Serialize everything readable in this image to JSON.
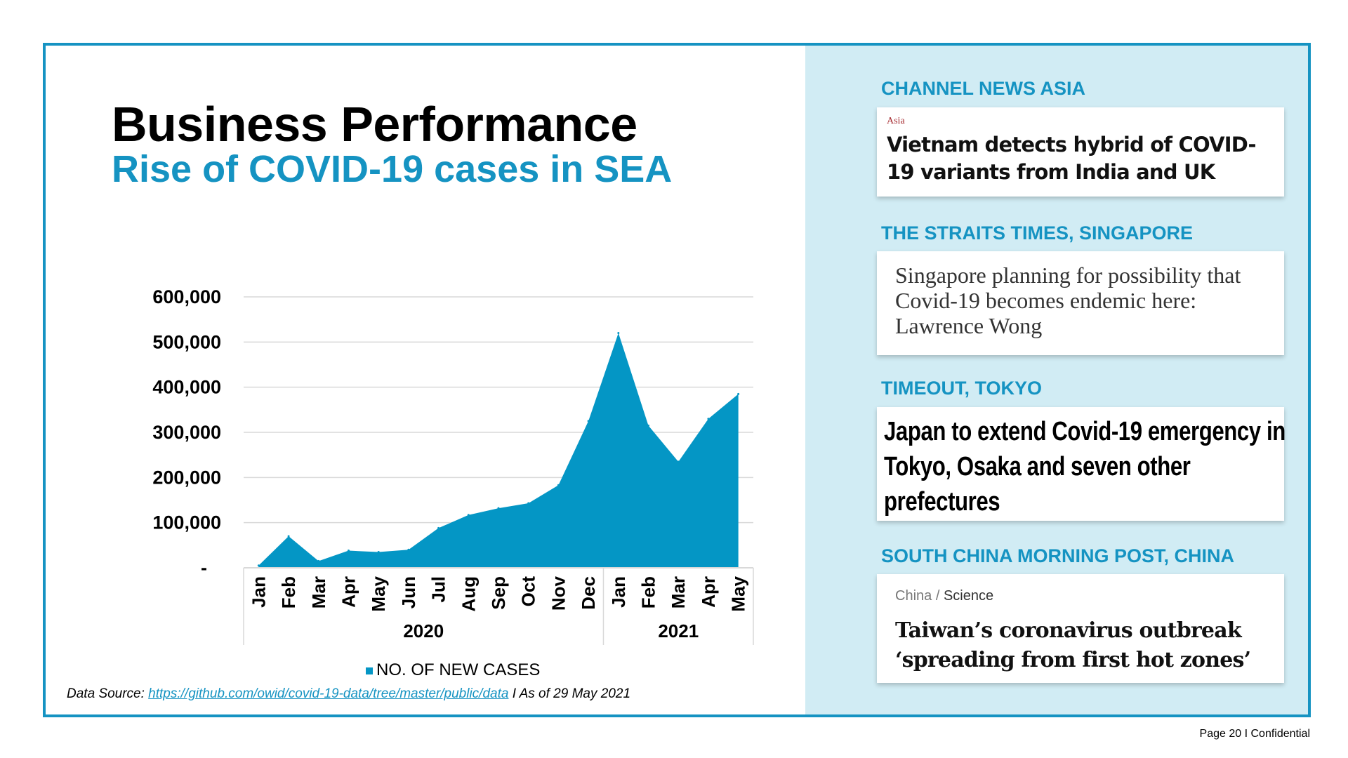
{
  "slide": {
    "title": "Business Performance",
    "subtitle": "Rise of COVID-19 cases in SEA",
    "source_prefix": "Data Source: ",
    "source_link": "https://github.com/owid/covid-19-data/tree/master/public/data",
    "source_suffix": " I As of 29 May 2021",
    "footer": "Page 20 I Confidential"
  },
  "colors": {
    "accent": "#1593c2",
    "area": "#0496c5",
    "panel": "#d1ecf4",
    "grid": "#d9d9d9"
  },
  "chart_data": {
    "type": "area",
    "categories": [
      "Jan",
      "Feb",
      "Mar",
      "Apr",
      "May",
      "Jun",
      "Jul",
      "Aug",
      "Sep",
      "Oct",
      "Nov",
      "Dec",
      "Jan",
      "Feb",
      "Mar",
      "Apr",
      "May"
    ],
    "category_groups": [
      {
        "label": "2020",
        "count": 12
      },
      {
        "label": "2021",
        "count": 5
      }
    ],
    "series": [
      {
        "name": "NO. OF NEW CASES",
        "values": [
          5000,
          70000,
          15000,
          38000,
          35000,
          40000,
          88000,
          117000,
          132000,
          143000,
          183000,
          325000,
          520000,
          315000,
          235000,
          330000,
          385000
        ]
      }
    ],
    "y_ticks": [
      {
        "value": 0,
        "label": "-"
      },
      {
        "value": 100000,
        "label": "100,000"
      },
      {
        "value": 200000,
        "label": "200,000"
      },
      {
        "value": 300000,
        "label": "300,000"
      },
      {
        "value": 400000,
        "label": "400,000"
      },
      {
        "value": 500000,
        "label": "500,000"
      },
      {
        "value": 600000,
        "label": "600,000"
      }
    ],
    "ylim": [
      0,
      600000
    ],
    "grid": true,
    "legend_position": "bottom"
  },
  "news": [
    {
      "publisher": "CHANNEL NEWS ASIA",
      "section": "Asia",
      "headline": "Vietnam detects hybrid of COVID-19 variants from India and UK"
    },
    {
      "publisher": "THE STRAITS TIMES, SINGAPORE",
      "headline": "Singapore planning for possibility that Covid-19 becomes endemic here: Lawrence Wong"
    },
    {
      "publisher": "TIMEOUT, TOKYO",
      "headline": "Japan to extend Covid-19 emergency in Tokyo, Osaka and seven other prefectures"
    },
    {
      "publisher": "SOUTH CHINA MORNING POST, CHINA",
      "crumb_parent": "China",
      "crumb_sep": " / ",
      "crumb_current": "Science",
      "headline": "Taiwan’s coronavirus outbreak ‘spreading from first hot zones’"
    }
  ]
}
